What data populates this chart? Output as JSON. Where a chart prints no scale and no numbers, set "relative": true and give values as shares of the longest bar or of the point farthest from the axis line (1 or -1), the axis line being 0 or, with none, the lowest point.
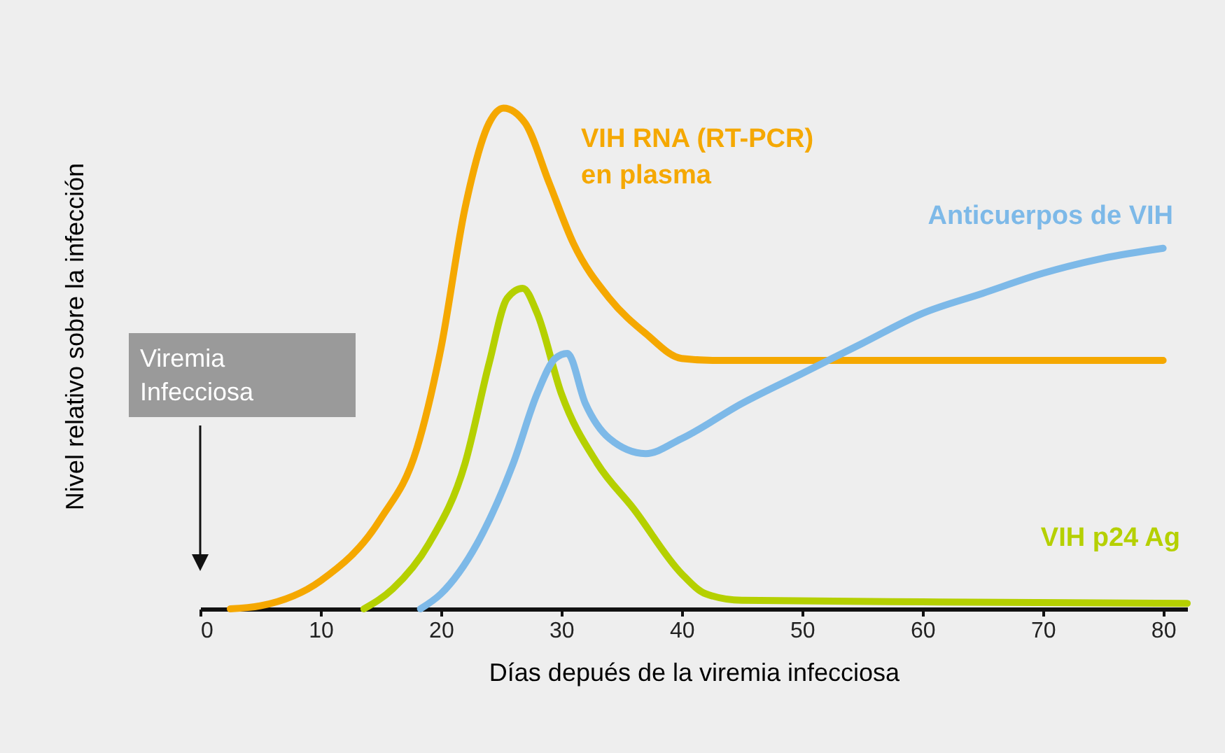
{
  "chart_data": {
    "type": "line",
    "relative": true,
    "xlabel": "Días depués de la viremia infecciosa",
    "ylabel": "Nivel relativo sobre la infección",
    "xlim": [
      0,
      82
    ],
    "xticks": [
      0,
      10,
      20,
      30,
      40,
      50,
      60,
      70,
      80
    ],
    "annotations": [
      "Viremia Infecciosa"
    ],
    "series": [
      {
        "name": "VIH RNA (RT-PCR)\nen plasma",
        "color": "#f5a800",
        "x": [
          2.5,
          5,
          10,
          15,
          18,
          20,
          22,
          24,
          25.2,
          27,
          29,
          31,
          34,
          37,
          40,
          43,
          80
        ],
        "values": [
          0,
          0.006,
          0.056,
          0.18,
          0.32,
          0.52,
          0.8,
          0.97,
          1,
          0.97,
          0.85,
          0.73,
          0.62,
          0.55,
          0.5,
          0.496,
          0.496
        ]
      },
      {
        "name": "VIH p24 Ag",
        "color": "#b5d000",
        "x": [
          13.6,
          16,
          19,
          22,
          24,
          25.5,
          26.8,
          28,
          30,
          33,
          36,
          40,
          42,
          45,
          60,
          82
        ],
        "values": [
          0,
          0.04,
          0.13,
          0.29,
          0.49,
          0.62,
          0.64,
          0.59,
          0.43,
          0.29,
          0.2,
          0.07,
          0.03,
          0.017,
          0.014,
          0.011
        ]
      },
      {
        "name": "Anticuerpos de VIH",
        "color": "#7db9e8",
        "x": [
          18.3,
          20,
          23,
          26,
          28,
          29.5,
          30.5,
          32,
          34,
          37,
          40,
          45,
          50,
          55,
          60,
          65,
          70,
          75,
          80
        ],
        "values": [
          0,
          0.03,
          0.13,
          0.29,
          0.43,
          0.5,
          0.51,
          0.41,
          0.34,
          0.31,
          0.34,
          0.41,
          0.47,
          0.53,
          0.59,
          0.63,
          0.67,
          0.7,
          0.72
        ]
      }
    ]
  }
}
